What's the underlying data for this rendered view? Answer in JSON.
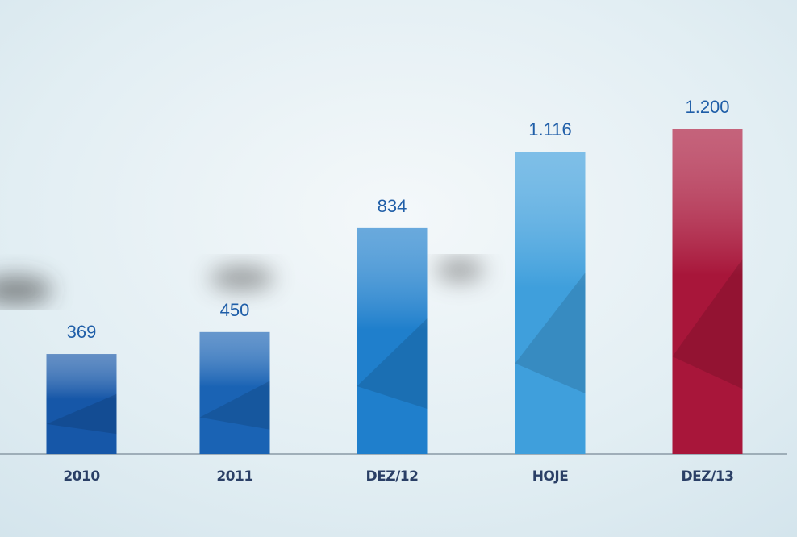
{
  "chart_data": {
    "type": "bar",
    "categories": [
      "2010",
      "2011",
      "DEZ/12",
      "HOJE",
      "DEZ/13"
    ],
    "values": [
      369,
      450,
      834,
      1116,
      1200
    ],
    "value_labels": [
      "369",
      "450",
      "834",
      "1.116",
      "1.200"
    ],
    "colors": [
      "#1657a8",
      "#1a63b4",
      "#1f7fcc",
      "#3f9fdc",
      "#a8163a"
    ]
  }
}
